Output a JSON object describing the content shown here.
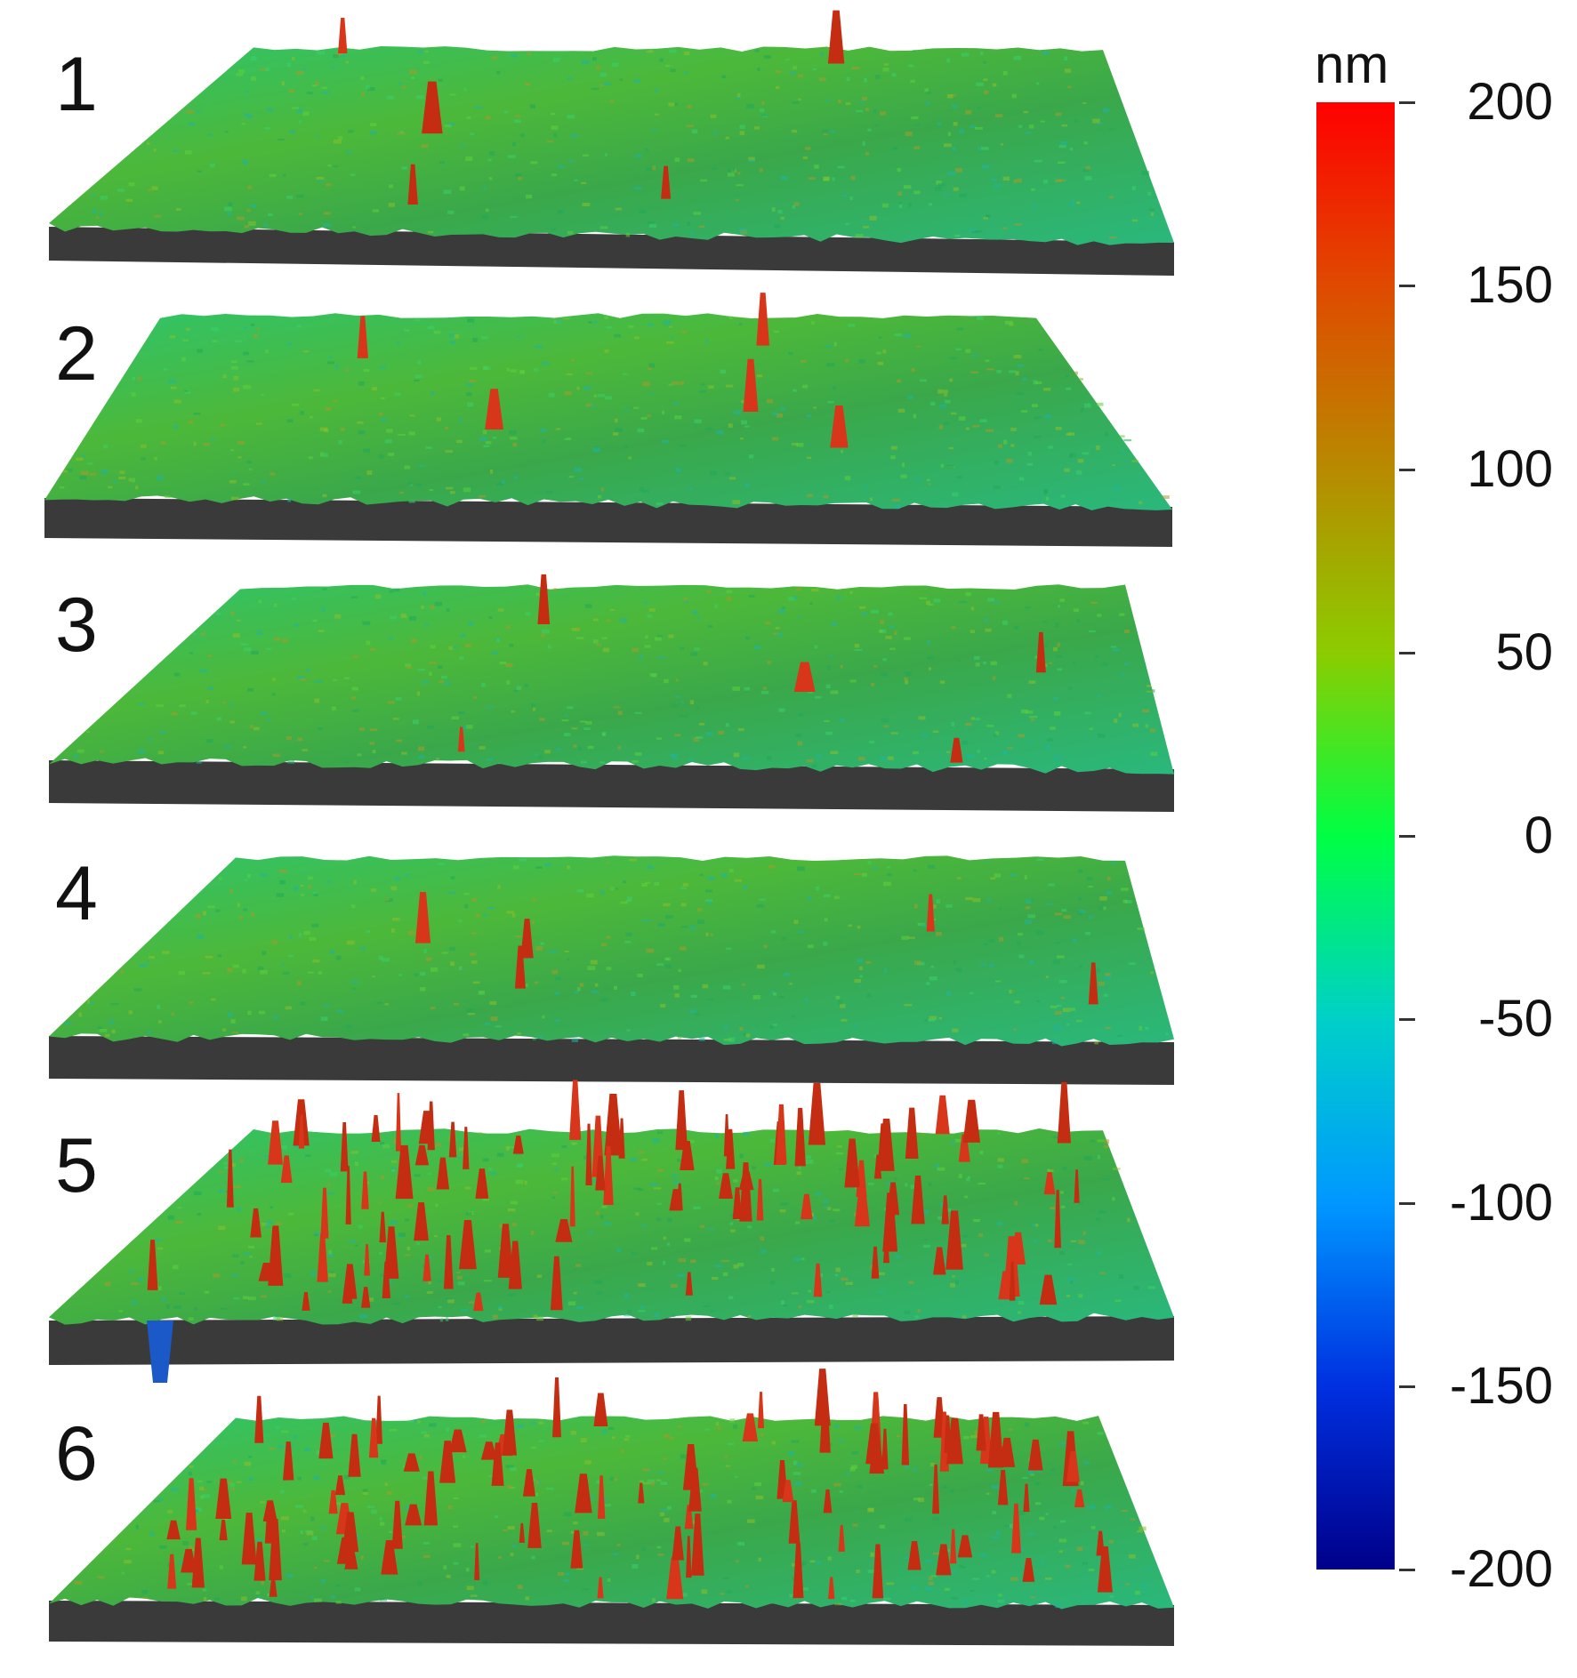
{
  "panels": [
    {
      "label": "1",
      "peaks": "few"
    },
    {
      "label": "2",
      "peaks": "few"
    },
    {
      "label": "3",
      "peaks": "few"
    },
    {
      "label": "4",
      "peaks": "few"
    },
    {
      "label": "5",
      "peaks": "many"
    },
    {
      "label": "6",
      "peaks": "many"
    }
  ],
  "colorbar": {
    "unit": "nm",
    "min": -200,
    "max": 200,
    "tick_values": [
      200,
      150,
      100,
      50,
      0,
      -50,
      -100,
      -150,
      -200
    ],
    "tick_labels": [
      "200",
      "150",
      "100",
      "50",
      "0",
      "-50",
      "-100",
      "-150",
      "-200"
    ],
    "colors": [
      "#ff0000",
      "#e04a00",
      "#b88a00",
      "#8ccc00",
      "#00ff44",
      "#00d0c8",
      "#0098ff",
      "#0030e0",
      "#00008a"
    ]
  }
}
